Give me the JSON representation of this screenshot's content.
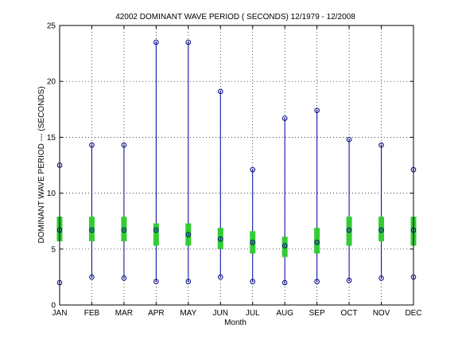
{
  "chart_data": {
    "type": "box",
    "title": "42002  DOMINANT WAVE PERIOD ( SECONDS) 12/1979 - 12/2008",
    "xlabel": "Month",
    "ylabel": "DOMINANT WAVE PERIOD --- (SECONDS)",
    "ylim": [
      0,
      25
    ],
    "yticks": [
      0,
      5,
      10,
      15,
      20,
      25
    ],
    "grid": true,
    "categories": [
      "JAN",
      "FEB",
      "MAR",
      "APR",
      "MAY",
      "JUN",
      "JUL",
      "AUG",
      "SEP",
      "OCT",
      "NOV",
      "DEC"
    ],
    "series": [
      {
        "name": "",
        "values": {
          "max": [
            12.5,
            14.3,
            14.3,
            23.5,
            23.5,
            19.1,
            12.1,
            16.7,
            17.4,
            14.8,
            14.3,
            12.1
          ],
          "q3": [
            7.9,
            7.9,
            7.9,
            7.3,
            7.3,
            6.9,
            6.6,
            6.1,
            6.9,
            7.9,
            7.9,
            7.9
          ],
          "median": [
            6.7,
            6.7,
            6.7,
            6.7,
            6.3,
            5.9,
            5.6,
            5.3,
            5.6,
            6.7,
            6.7,
            6.7
          ],
          "q1": [
            5.7,
            5.7,
            5.7,
            5.3,
            5.3,
            5.0,
            4.6,
            4.3,
            4.6,
            5.3,
            5.7,
            5.3
          ],
          "min": [
            2.0,
            2.5,
            2.4,
            2.1,
            2.1,
            2.5,
            2.1,
            2.0,
            2.1,
            2.2,
            2.4,
            2.5
          ]
        }
      }
    ],
    "colors": {
      "whisker": "#0000aa",
      "box": "#33cc33",
      "marker": "#000080",
      "grid": "#000000"
    }
  }
}
